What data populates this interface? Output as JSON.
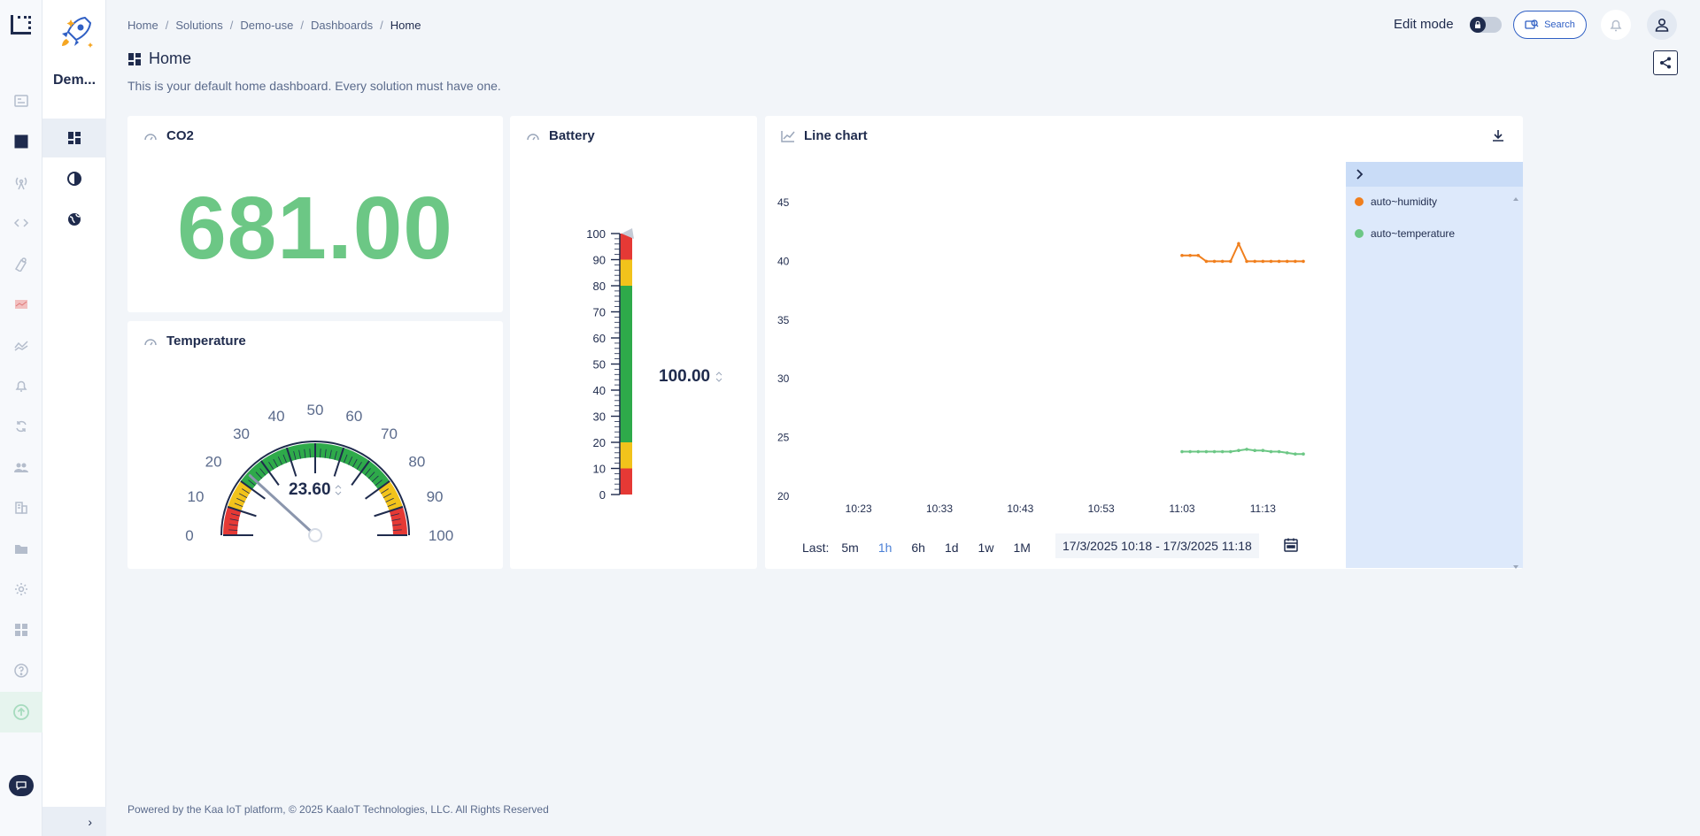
{
  "sidebar": {
    "solution_name": "Dem...",
    "collapse_label": "›"
  },
  "header": {
    "breadcrumb": [
      "Home",
      "Solutions",
      "Demo-use",
      "Dashboards",
      "Home"
    ],
    "edit_mode_label": "Edit mode",
    "search_label": "Search"
  },
  "page": {
    "title": "Home",
    "description": "This is your default home dashboard. Every solution must have one."
  },
  "co2": {
    "title": "CO2",
    "value": "681.00",
    "value_color": "#6cc785"
  },
  "temperature": {
    "title": "Temperature",
    "value": 23.6,
    "value_label": "23.60",
    "min": 0,
    "max": 100,
    "ticks": [
      "0",
      "10",
      "20",
      "30",
      "40",
      "50",
      "60",
      "70",
      "80",
      "90",
      "100"
    ],
    "bands": [
      {
        "from": 0,
        "to": 10,
        "color": "#e53935"
      },
      {
        "from": 10,
        "to": 20,
        "color": "#f2c31b"
      },
      {
        "from": 20,
        "to": 80,
        "color": "#2eaa4a"
      },
      {
        "from": 80,
        "to": 90,
        "color": "#f2c31b"
      },
      {
        "from": 90,
        "to": 100,
        "color": "#e53935"
      }
    ]
  },
  "battery": {
    "title": "Battery",
    "value": 100,
    "value_label": "100.00",
    "ticks": [
      "100",
      "90",
      "80",
      "70",
      "60",
      "50",
      "40",
      "30",
      "20",
      "10",
      "0"
    ],
    "bands": [
      {
        "from": 0,
        "to": 10,
        "color": "#e53935"
      },
      {
        "from": 10,
        "to": 20,
        "color": "#f2c31b"
      },
      {
        "from": 20,
        "to": 80,
        "color": "#2eaa4a"
      },
      {
        "from": 80,
        "to": 90,
        "color": "#f2c31b"
      },
      {
        "from": 90,
        "to": 100,
        "color": "#e53935"
      }
    ]
  },
  "linechart": {
    "title": "Line chart",
    "time_label": "Last:",
    "time_options": [
      "5m",
      "1h",
      "6h",
      "1d",
      "1w",
      "1M"
    ],
    "active_option": "1h",
    "date_range": "17/3/2025 10:18 - 17/3/2025 11:18"
  },
  "chart_data": {
    "type": "line",
    "title": "Line chart",
    "xlabel": "",
    "ylabel": "",
    "x_ticks": [
      "10:23",
      "10:33",
      "10:43",
      "10:53",
      "11:03",
      "11:13"
    ],
    "y_ticks": [
      20,
      25,
      30,
      35,
      40,
      45
    ],
    "ylim": [
      20,
      45
    ],
    "xlim_minutes": [
      10.2,
      11.3
    ],
    "series": [
      {
        "name": "auto~humidity",
        "color": "#f07f1d",
        "x": [
          "11:03",
          "11:04",
          "11:05",
          "11:06",
          "11:07",
          "11:08",
          "11:09",
          "11:10",
          "11:11",
          "11:12",
          "11:13",
          "11:14",
          "11:15",
          "11:16",
          "11:17",
          "11:18"
        ],
        "values": [
          40.5,
          40.5,
          40.5,
          40.0,
          40.0,
          40.0,
          40.0,
          41.5,
          40.0,
          40.0,
          40.0,
          40.0,
          40.0,
          40.0,
          40.0,
          40.0
        ]
      },
      {
        "name": "auto~temperature",
        "color": "#6cc785",
        "x": [
          "11:03",
          "11:04",
          "11:05",
          "11:06",
          "11:07",
          "11:08",
          "11:09",
          "11:10",
          "11:11",
          "11:12",
          "11:13",
          "11:14",
          "11:15",
          "11:16",
          "11:17",
          "11:18"
        ],
        "values": [
          23.8,
          23.8,
          23.8,
          23.8,
          23.8,
          23.8,
          23.8,
          23.9,
          24.0,
          23.9,
          23.9,
          23.8,
          23.8,
          23.7,
          23.6,
          23.6
        ]
      }
    ]
  },
  "footer": {
    "text": "Powered by the Kaa IoT platform, © 2025 KaaIoT Technologies, LLC. All Rights Reserved"
  }
}
